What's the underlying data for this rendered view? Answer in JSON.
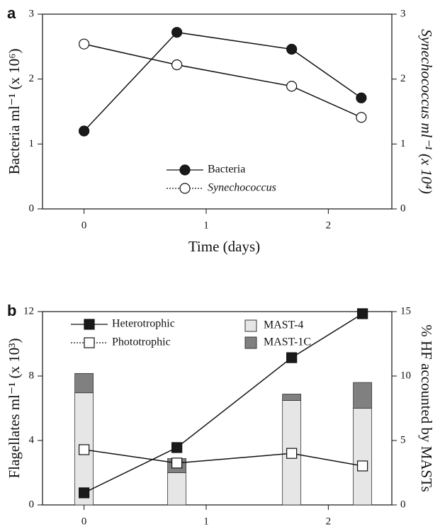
{
  "chart_data": [
    {
      "type": "line",
      "panel_label": "a",
      "xlabel": "Time (days)",
      "ylabel": "Bacteria ml⁻¹ (x 10⁶)",
      "y2label": "Synechococcus ml⁻¹ (x 10⁴)",
      "x": [
        0,
        0.76,
        1.7,
        2.27
      ],
      "xlim": [
        -0.34,
        2.52
      ],
      "xticks": [
        0,
        1,
        2
      ],
      "ylim": [
        0,
        3
      ],
      "yticks": [
        0,
        1,
        2,
        3
      ],
      "y2lim": [
        0,
        3
      ],
      "y2ticks": [
        0,
        1,
        2,
        3
      ],
      "series": [
        {
          "name": "Bacteria",
          "kind": "line",
          "marker": "circle",
          "color": "#1a1a1a",
          "values": [
            1.2,
            2.72,
            2.46,
            1.71
          ]
        },
        {
          "name": "Synechococcus",
          "kind": "line",
          "marker": "circle",
          "color": "#ffffff",
          "axis": "y2",
          "values": [
            2.54,
            2.22,
            1.89,
            1.41
          ]
        }
      ]
    },
    {
      "type": "combo",
      "panel_label": "b",
      "xlabel": "Time (days)",
      "ylabel": "Flagellates ml⁻¹ (x 10³)",
      "y2label": "% HF accounted by MASTs",
      "x": [
        0,
        0.76,
        1.7,
        2.28
      ],
      "xlim": [
        -0.34,
        2.52
      ],
      "xticks": [
        0,
        1,
        2
      ],
      "ylim": [
        0,
        12
      ],
      "yticks": [
        0,
        4,
        8,
        12
      ],
      "y2lim": [
        0,
        15
      ],
      "y2ticks": [
        0,
        5,
        10,
        15
      ],
      "series": [
        {
          "name": "MAST-4",
          "kind": "bar",
          "color": "#e6e6e6",
          "axis": "y2",
          "values": [
            8.7,
            2.5,
            8.1,
            7.5
          ]
        },
        {
          "name": "MAST-1C",
          "kind": "bar",
          "color": "#808080",
          "axis": "y2",
          "values": [
            1.5,
            1.1,
            0.5,
            2.0
          ]
        },
        {
          "name": "Heterotrophic",
          "kind": "line",
          "marker": "square",
          "color": "#1a1a1a",
          "values": [
            0.75,
            3.56,
            9.14,
            11.87
          ]
        },
        {
          "name": "Phototrophic",
          "kind": "line",
          "marker": "square",
          "color": "#ffffff",
          "values": [
            3.43,
            2.6,
            3.2,
            2.42
          ]
        }
      ]
    }
  ]
}
